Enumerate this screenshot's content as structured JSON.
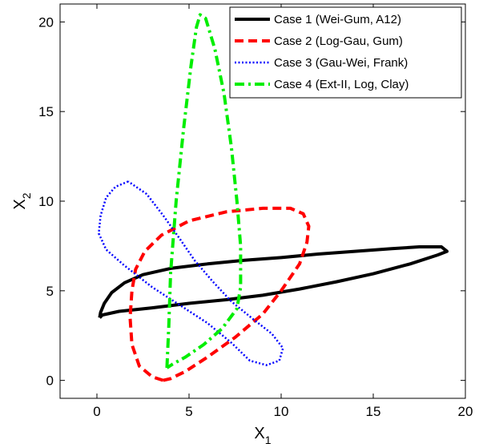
{
  "chart_data": {
    "type": "line",
    "title": "",
    "xlabel": "X",
    "xlabel_sub": "1",
    "ylabel": "X",
    "ylabel_sub": "2",
    "xlim": [
      -2,
      20
    ],
    "ylim": [
      -1,
      21
    ],
    "xticks": [
      0,
      5,
      10,
      15,
      20
    ],
    "yticks": [
      0,
      5,
      10,
      15,
      20
    ],
    "xtick_labels": [
      "0",
      "5",
      "10",
      "15",
      "20"
    ],
    "ytick_labels": [
      "0",
      "5",
      "10",
      "15",
      "20"
    ],
    "grid": false,
    "legend_position": "top-right",
    "series": [
      {
        "name": "Case 1 (Wei-Gum, A12)",
        "color": "#000000",
        "dash": "solid",
        "points": [
          [
            0.15,
            3.5
          ],
          [
            0.3,
            3.65
          ],
          [
            1.2,
            3.85
          ],
          [
            3,
            4.05
          ],
          [
            5,
            4.3
          ],
          [
            7,
            4.5
          ],
          [
            9,
            4.75
          ],
          [
            11,
            5.1
          ],
          [
            13,
            5.5
          ],
          [
            15,
            5.95
          ],
          [
            17,
            6.5
          ],
          [
            18.5,
            7
          ],
          [
            19,
            7.2
          ],
          [
            18.7,
            7.45
          ],
          [
            17.5,
            7.45
          ],
          [
            16,
            7.35
          ],
          [
            14,
            7.2
          ],
          [
            12,
            7.05
          ],
          [
            10,
            6.85
          ],
          [
            8,
            6.7
          ],
          [
            6,
            6.5
          ],
          [
            4,
            6.25
          ],
          [
            2.5,
            5.9
          ],
          [
            1.5,
            5.45
          ],
          [
            0.8,
            4.9
          ],
          [
            0.4,
            4.3
          ],
          [
            0.2,
            3.8
          ],
          [
            0.15,
            3.5
          ]
        ]
      },
      {
        "name": "Case 2 (Log-Gau, Gum)",
        "color": "#ff0000",
        "dash": "dashed",
        "points": [
          [
            3.6,
            0
          ],
          [
            3,
            0.2
          ],
          [
            2.3,
            0.8
          ],
          [
            1.9,
            2
          ],
          [
            1.8,
            3.5
          ],
          [
            1.9,
            5
          ],
          [
            2.1,
            6.2
          ],
          [
            2.6,
            7.2
          ],
          [
            3.5,
            8.1
          ],
          [
            5,
            8.9
          ],
          [
            7,
            9.4
          ],
          [
            9,
            9.6
          ],
          [
            10.5,
            9.6
          ],
          [
            11.2,
            9.3
          ],
          [
            11.5,
            8.6
          ],
          [
            11.4,
            7.7
          ],
          [
            11,
            6.5
          ],
          [
            10,
            5
          ],
          [
            9,
            3.7
          ],
          [
            7.5,
            2.4
          ],
          [
            6,
            1.3
          ],
          [
            4.8,
            0.5
          ],
          [
            4,
            0.1
          ],
          [
            3.6,
            0
          ]
        ]
      },
      {
        "name": "Case 3 (Gau-Wei, Frank)",
        "color": "#0000ff",
        "dash": "dotted",
        "points": [
          [
            1.7,
            11.1
          ],
          [
            1,
            10.8
          ],
          [
            0.5,
            10.2
          ],
          [
            0.2,
            9.2
          ],
          [
            0.1,
            8.2
          ],
          [
            0.5,
            7.3
          ],
          [
            1.5,
            6.4
          ],
          [
            3,
            5.2
          ],
          [
            4.5,
            4.2
          ],
          [
            6,
            3.2
          ],
          [
            7.3,
            2.1
          ],
          [
            8.3,
            1.1
          ],
          [
            9.2,
            0.85
          ],
          [
            9.9,
            1.1
          ],
          [
            10.1,
            1.8
          ],
          [
            9.5,
            2.6
          ],
          [
            8.5,
            3.4
          ],
          [
            7.3,
            4.4
          ],
          [
            6.3,
            5.5
          ],
          [
            5.3,
            6.7
          ],
          [
            4.5,
            7.9
          ],
          [
            3.6,
            9.2
          ],
          [
            2.7,
            10.4
          ],
          [
            1.7,
            11.1
          ]
        ]
      },
      {
        "name": "Case 4 (Ext-II, Log, Clay)",
        "color": "#00ee00",
        "dash": "dashdot",
        "points": [
          [
            3.8,
            0.7
          ],
          [
            3.9,
            3
          ],
          [
            4,
            6
          ],
          [
            4.3,
            10
          ],
          [
            4.7,
            14
          ],
          [
            5.1,
            17.5
          ],
          [
            5.4,
            19.7
          ],
          [
            5.6,
            20.4
          ],
          [
            5.9,
            20.2
          ],
          [
            6.4,
            18.5
          ],
          [
            6.9,
            16
          ],
          [
            7.3,
            13
          ],
          [
            7.6,
            10
          ],
          [
            7.8,
            7.5
          ],
          [
            7.8,
            5.2
          ],
          [
            7.6,
            4
          ],
          [
            6.8,
            2.9
          ],
          [
            5.8,
            2
          ],
          [
            4.8,
            1.3
          ],
          [
            4.1,
            0.9
          ],
          [
            3.8,
            0.7
          ]
        ]
      }
    ]
  }
}
